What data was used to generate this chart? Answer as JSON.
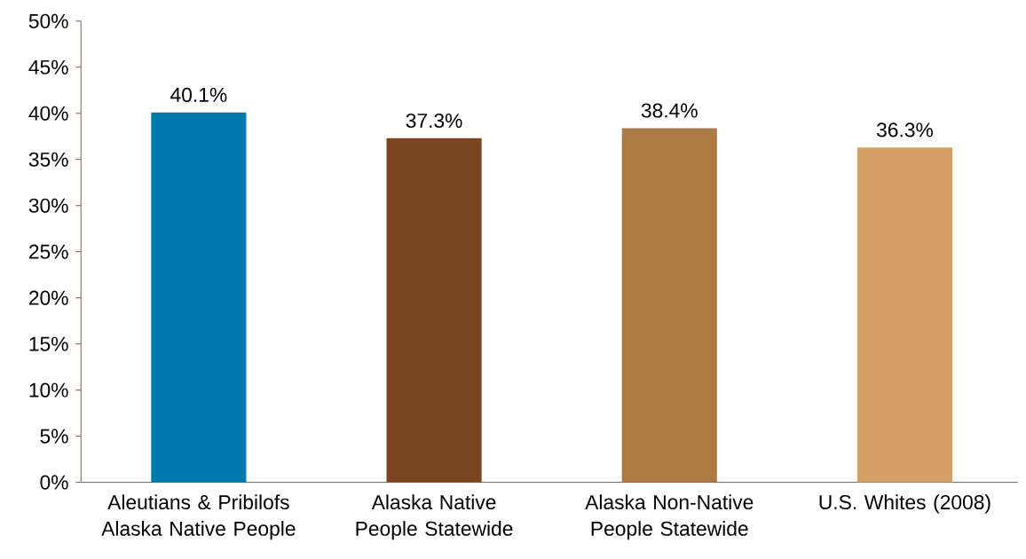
{
  "chart_data": {
    "type": "bar",
    "categories": [
      "Aleutians & Pribilofs Alaska Native People",
      "Alaska Native People Statewide",
      "Alaska Non-Native People Statewide",
      "U.S. Whites (2008)"
    ],
    "values": [
      40.1,
      37.3,
      38.4,
      36.3
    ],
    "colors": [
      "#0079ad",
      "#7a4620",
      "#ad7b42",
      "#d4a066"
    ],
    "value_labels": [
      "40.1%",
      "37.3%",
      "38.4%",
      "36.3%"
    ],
    "ylim": [
      0,
      50
    ],
    "yticks": [
      {
        "value": 0,
        "label": "0%"
      },
      {
        "value": 5,
        "label": "5%"
      },
      {
        "value": 10,
        "label": "10%"
      },
      {
        "value": 15,
        "label": "15%"
      },
      {
        "value": 20,
        "label": "20%"
      },
      {
        "value": 25,
        "label": "25%"
      },
      {
        "value": 30,
        "label": "30%"
      },
      {
        "value": 35,
        "label": "35%"
      },
      {
        "value": 40,
        "label": "40%"
      },
      {
        "value": 45,
        "label": "45%"
      },
      {
        "value": 50,
        "label": "50%"
      }
    ]
  }
}
